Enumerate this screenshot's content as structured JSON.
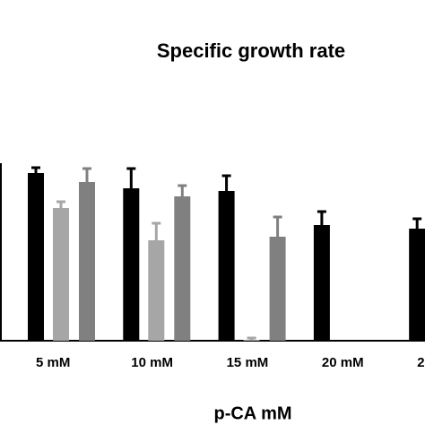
{
  "chart_data": {
    "type": "bar",
    "title": "Specific growth rate",
    "x_label": "p-CA mM",
    "categories": [
      "5 mM",
      "10 mM",
      "15 mM",
      "20 mM",
      "2"
    ],
    "series": [
      {
        "color": "#000000",
        "values": [
          0.935,
          0.85,
          0.835,
          0.645,
          0.625
        ],
        "errors": [
          0.03,
          0.11,
          0.085,
          0.075,
          0.055
        ]
      },
      {
        "color": "#a6a6a6",
        "values": [
          0.74,
          0.56,
          0.005,
          0,
          0
        ],
        "errors": [
          0.035,
          0.095,
          0.01,
          0,
          0
        ]
      },
      {
        "color": "#808080",
        "values": [
          0.885,
          0.805,
          0.58,
          0,
          0
        ],
        "errors": [
          0.075,
          0.06,
          0.11,
          0,
          0
        ]
      }
    ],
    "ylim": [
      0,
      1
    ]
  }
}
